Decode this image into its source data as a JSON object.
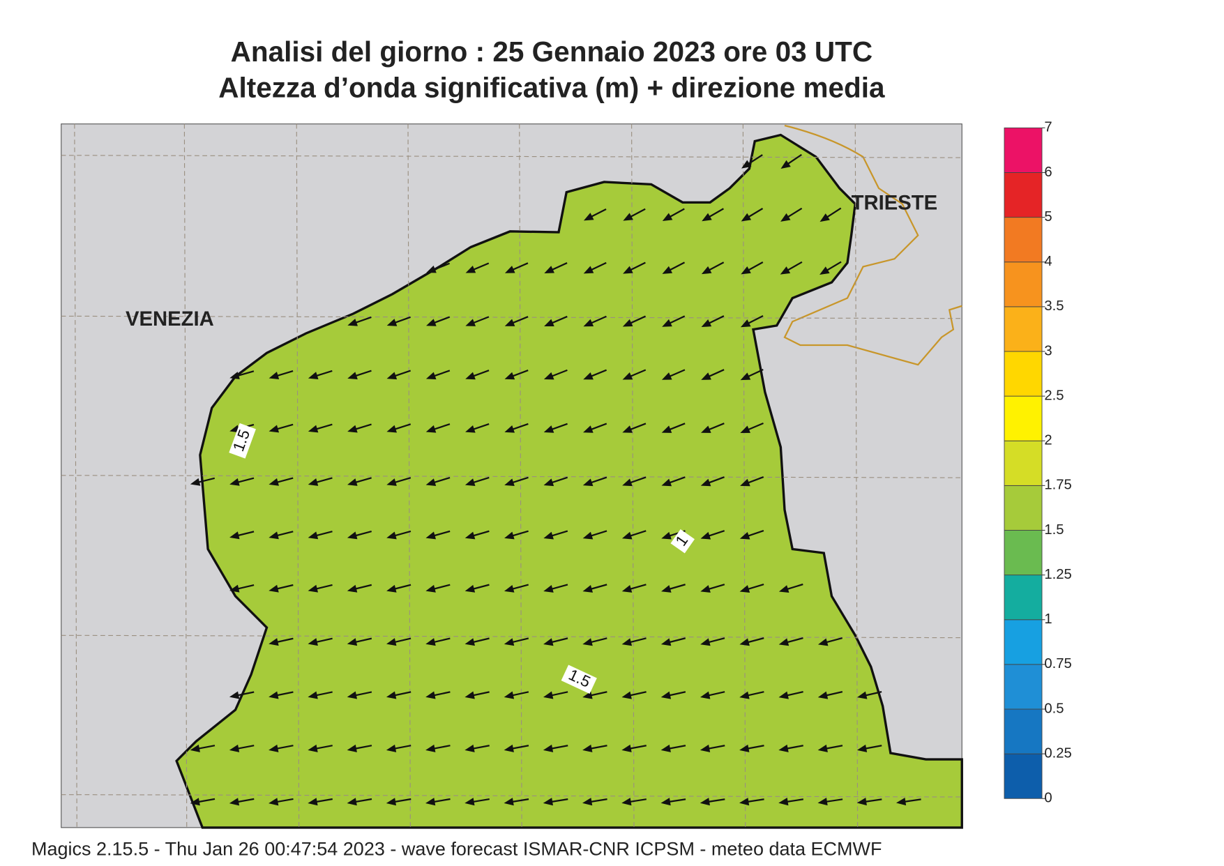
{
  "title": [
    "Analisi del giorno :  25  Gennaio  2023   ore 03 UTC",
    "Altezza d’onda significativa (m) + direzione media"
  ],
  "map": {
    "places": [
      "VENEZIA",
      "TRIESTE"
    ],
    "contour_labels": [
      "1.5",
      "1",
      "1.5"
    ]
  },
  "colorbar": {
    "levels": [
      0,
      0.25,
      0.5,
      0.75,
      1,
      1.25,
      1.5,
      1.75,
      2,
      2.5,
      3,
      3.5,
      4,
      5,
      6,
      7
    ],
    "colors": [
      "#0d5eab",
      "#1677c2",
      "#1f8fd6",
      "#17a0e1",
      "#14ad9f",
      "#6abb50",
      "#a6cb3a",
      "#d5dd26",
      "#fff200",
      "#ffd700",
      "#fbb119",
      "#f7931e",
      "#f27a22",
      "#e52426",
      "#ec1266"
    ]
  },
  "footer": "Magics 2.15.5 - Thu Jan 26 00:47:54 2023 - wave forecast  ISMAR-CNR  ICPSM - meteo data    ECMWF"
}
